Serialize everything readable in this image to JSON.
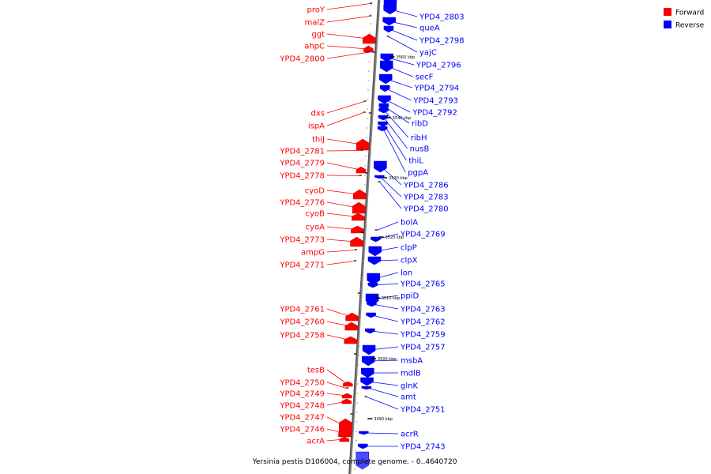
{
  "caption": "Yersinia pestis D106004, complete genome. - 0..4640720",
  "legend": {
    "forward": {
      "label": "Forward",
      "color": "#ff0000"
    },
    "reverse": {
      "label": "Reverse",
      "color": "#0000ff"
    }
  },
  "ticks": [
    "3560 kbp",
    "3540 kbp",
    "3530 kbp",
    "3520 kbp",
    "3510 kbp",
    "3500 kbp",
    "3490 kbp"
  ],
  "genes": {
    "forward": [
      "proY",
      "malZ",
      "ggt",
      "ahpC",
      "YPD4_2800",
      "dxs",
      "ispA",
      "thiJ",
      "YPD4_2781",
      "YPD4_2779",
      "YPD4_2778",
      "cyoD",
      "YPD4_2776",
      "cyoB",
      "cyoA",
      "YPD4_2773",
      "ampG",
      "YPD4_2771",
      "YPD4_2761",
      "YPD4_2760",
      "YPD4_2758",
      "tesB",
      "YPD4_2750",
      "YPD4_2749",
      "YPD4_2748",
      "YPD4_2747",
      "YPD4_2746",
      "acrA"
    ],
    "reverse": [
      "YPD4_2803",
      "queA",
      "YPD4_2798",
      "yajC",
      "YPD4_2796",
      "secF",
      "YPD4_2794",
      "YPD4_2793",
      "YPD4_2792",
      "ribD",
      "ribH",
      "nusB",
      "thiL",
      "pgpA",
      "YPD4_2786",
      "YPD4_2783",
      "YPD4_2780",
      "bolA",
      "YPD4_2769",
      "clpP",
      "clpX",
      "lon",
      "YPD4_2765",
      "ppiD",
      "YPD4_2763",
      "YPD4_2762",
      "YPD4_2759",
      "YPD4_2757",
      "msbA",
      "mdlB",
      "glnK",
      "amt",
      "YPD4_2751",
      "acrR",
      "YPD4_2743"
    ]
  }
}
